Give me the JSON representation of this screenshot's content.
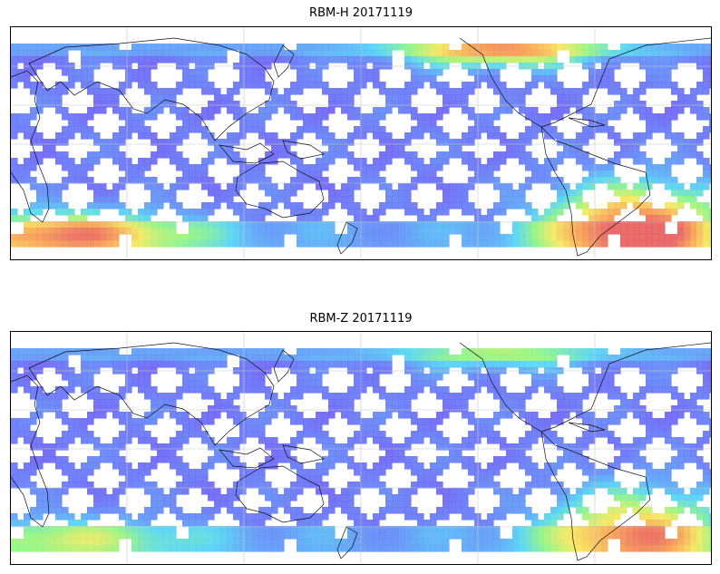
{
  "panels": [
    {
      "title": "RBM-H 20171119",
      "colormap": [
        "#6a5cf5",
        "#5f8df7",
        "#4fd3f5",
        "#8ef57f",
        "#f5e85a",
        "#f7a14f",
        "#e85c5c"
      ],
      "hotspots": [
        {
          "region": "south-atlantic",
          "level": 0.95
        },
        {
          "region": "south-indian",
          "level": 0.75
        },
        {
          "region": "north-pacific",
          "level": 0.7
        }
      ]
    },
    {
      "title": "RBM-Z 20171119",
      "colormap": [
        "#6a5cf5",
        "#5f8df7",
        "#4fd3f5",
        "#8ef57f",
        "#f5e85a",
        "#f7a14f",
        "#e85c5c"
      ],
      "hotspots": [
        {
          "region": "south-atlantic",
          "level": 0.75
        },
        {
          "region": "south-indian",
          "level": 0.4
        },
        {
          "region": "north-pacific",
          "level": 0.35
        }
      ]
    }
  ]
}
